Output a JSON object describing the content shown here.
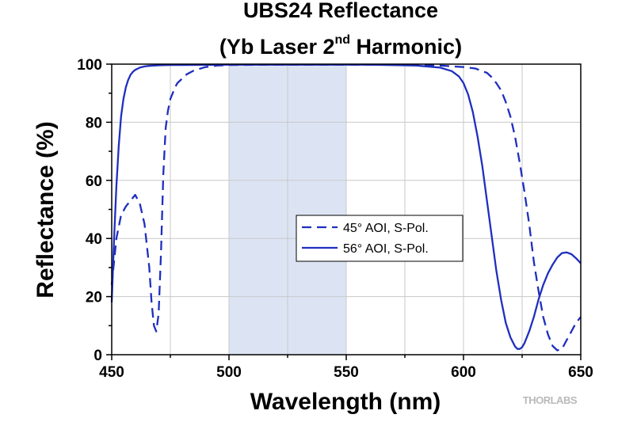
{
  "chart_data": {
    "type": "line",
    "title_line1": "UBS24 Reflectance",
    "title_line2_prefix": "(Yb Laser 2",
    "title_line2_sup": "nd",
    "title_line2_suffix": " Harmonic)",
    "xlabel": "Wavelength (nm)",
    "ylabel": "Reflectance (%)",
    "xlim": [
      450,
      650
    ],
    "ylim": [
      0,
      100
    ],
    "x_ticks": [
      "450",
      "500",
      "550",
      "600",
      "650"
    ],
    "y_ticks": [
      "0",
      "20",
      "40",
      "60",
      "80",
      "100"
    ],
    "grid": true,
    "legend_position": "center-right",
    "highlight_band": [
      500,
      550
    ],
    "highlight_color": "#dce4f4",
    "line_color": "#1f2fbf",
    "series": [
      {
        "name": "45° AOI, S-Pol.",
        "dash": true,
        "x": [
          450,
          452,
          454,
          456,
          458,
          460,
          462,
          464,
          466,
          467,
          468,
          469,
          470,
          471,
          472,
          473,
          474,
          475,
          476,
          477,
          478,
          480,
          482,
          485,
          490,
          495,
          500,
          520,
          540,
          560,
          580,
          590,
          600,
          605,
          610,
          612,
          614,
          616,
          618,
          620,
          622,
          624,
          626,
          628,
          630,
          632,
          634,
          636,
          638,
          640,
          642,
          644,
          646,
          648,
          650
        ],
        "y": [
          24,
          40,
          48,
          51,
          53,
          55,
          52,
          45,
          30,
          18,
          10,
          8,
          14,
          35,
          62,
          78,
          84,
          88,
          90,
          92,
          93.5,
          95,
          96.5,
          97.8,
          99,
          99.5,
          99.7,
          99.8,
          99.8,
          99.8,
          99.7,
          99.5,
          99,
          98.5,
          97,
          95.5,
          93.5,
          91,
          87,
          82,
          75,
          66,
          56,
          45,
          32,
          22,
          13,
          7,
          3,
          1.5,
          2,
          5,
          8,
          11,
          13
        ]
      },
      {
        "name": "56° AOI, S-Pol.",
        "dash": false,
        "x": [
          450,
          451,
          452,
          453,
          454,
          455,
          456,
          457,
          458,
          459,
          460,
          462,
          464,
          466,
          468,
          470,
          475,
          480,
          500,
          520,
          540,
          560,
          580,
          590,
          595,
          598,
          600,
          602,
          604,
          606,
          608,
          610,
          612,
          614,
          616,
          618,
          620,
          622,
          623,
          624,
          625,
          626,
          628,
          630,
          632,
          634,
          636,
          638,
          640,
          642,
          644,
          646,
          648,
          650
        ],
        "y": [
          18,
          40,
          58,
          72,
          82,
          88,
          92,
          94.5,
          96.3,
          97.3,
          98,
          98.8,
          99.2,
          99.4,
          99.5,
          99.6,
          99.7,
          99.7,
          99.8,
          99.8,
          99.8,
          99.8,
          99.5,
          98.8,
          97.6,
          95.8,
          93.5,
          89.5,
          83.5,
          75,
          65,
          53,
          41,
          29,
          19,
          11,
          6,
          2.8,
          2.0,
          2.0,
          2.6,
          4,
          8,
          13,
          19,
          24,
          28,
          31,
          33.5,
          35,
          35.2,
          34.6,
          33.2,
          31.5
        ]
      }
    ]
  },
  "logo": {
    "text": "THORLABS",
    "color": "#b9b9b9"
  }
}
